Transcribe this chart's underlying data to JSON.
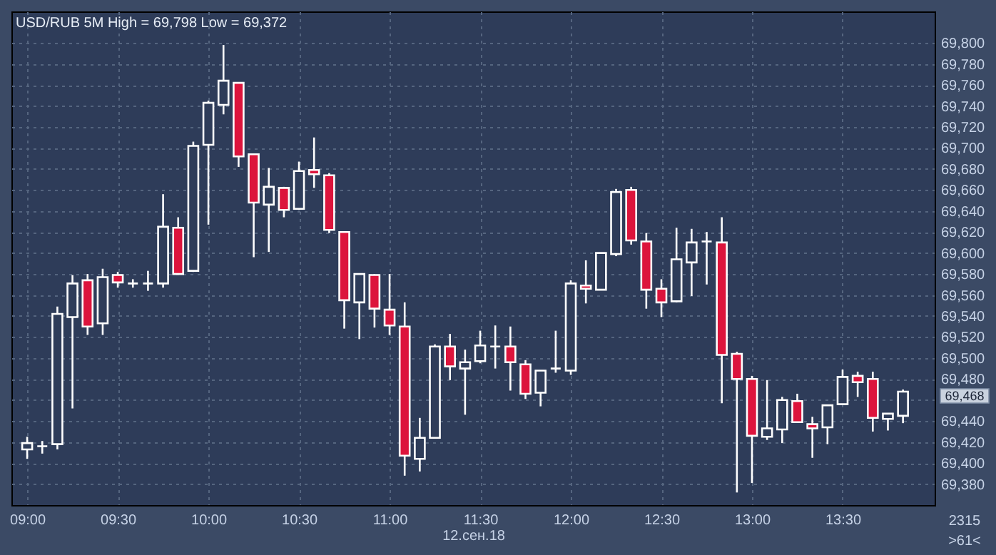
{
  "chart_data": {
    "type": "candlestick",
    "title": "USD/RUB 5M High = 69,798 Low = 69,372",
    "xlabel": "12.сен.18",
    "x": [
      9,
      9.0833,
      9.1667,
      9.25,
      9.3333,
      9.4167,
      9.5,
      9.5833,
      9.6667,
      9.75,
      9.8333,
      9.9167,
      10,
      10.0833,
      10.1667,
      10.25,
      10.3333,
      10.4167,
      10.5,
      10.5833,
      10.6667,
      10.75,
      10.8333,
      10.9167,
      11,
      11.0833,
      11.1667,
      11.25,
      11.3333,
      11.4167,
      11.5,
      11.5833,
      11.6667,
      11.75,
      11.8333,
      11.9167,
      12,
      12.0833,
      12.1667,
      12.25,
      12.3333,
      12.4167,
      12.5,
      12.5833,
      12.6667,
      12.75,
      12.8333,
      12.9167,
      13,
      13.0833,
      13.1667,
      13.25,
      13.3333,
      13.4167,
      13.5,
      13.5833,
      13.6667,
      13.75,
      13.8333
    ],
    "ohlc": [
      [
        69413,
        69425,
        69404,
        69419
      ],
      [
        69416,
        69421,
        69409,
        69416
      ],
      [
        69418,
        69549,
        69413,
        69542
      ],
      [
        69539,
        69579,
        69452,
        69571
      ],
      [
        69574,
        69580,
        69522,
        69530
      ],
      [
        69533,
        69585,
        69522,
        69577
      ],
      [
        69579,
        69582,
        69567,
        69572
      ],
      [
        69571,
        69575,
        69567,
        69571
      ],
      [
        69571,
        69583,
        69564,
        69571
      ],
      [
        69571,
        69656,
        69567,
        69625
      ],
      [
        69624,
        69634,
        69580,
        69580
      ],
      [
        69583,
        69706,
        69582,
        69702
      ],
      [
        69703,
        69745,
        69627,
        69743
      ],
      [
        69741,
        69798,
        69732,
        69764
      ],
      [
        69762,
        69762,
        69682,
        69692
      ],
      [
        69694,
        69694,
        69596,
        69648
      ],
      [
        69646,
        69681,
        69601,
        69663
      ],
      [
        69662,
        69663,
        69634,
        69641
      ],
      [
        69642,
        69687,
        69641,
        69678
      ],
      [
        69679,
        69710,
        69662,
        69675
      ],
      [
        69674,
        69676,
        69619,
        69622
      ],
      [
        69620,
        69620,
        69528,
        69555
      ],
      [
        69553,
        69580,
        69518,
        69580
      ],
      [
        69579,
        69580,
        69529,
        69547
      ],
      [
        69546,
        69580,
        69522,
        69531
      ],
      [
        69530,
        69553,
        69388,
        69407
      ],
      [
        69404,
        69443,
        69392,
        69424
      ],
      [
        69424,
        69513,
        69424,
        69511
      ],
      [
        69511,
        69523,
        69479,
        69492
      ],
      [
        69490,
        69508,
        69446,
        69496
      ],
      [
        69497,
        69526,
        69495,
        69512
      ],
      [
        69511,
        69531,
        69490,
        69511
      ],
      [
        69511,
        69530,
        69469,
        69496
      ],
      [
        69494,
        69498,
        69461,
        69466
      ],
      [
        69467,
        69488,
        69454,
        69488
      ],
      [
        69490,
        69526,
        69486,
        69490
      ],
      [
        69488,
        69574,
        69484,
        69571
      ],
      [
        69569,
        69593,
        69552,
        69566
      ],
      [
        69565,
        69600,
        69565,
        69600
      ],
      [
        69599,
        69661,
        69597,
        69658
      ],
      [
        69660,
        69663,
        69608,
        69612
      ],
      [
        69611,
        69619,
        69547,
        69565
      ],
      [
        69566,
        69575,
        69539,
        69553
      ],
      [
        69554,
        69624,
        69553,
        69594
      ],
      [
        69591,
        69623,
        69559,
        69610
      ],
      [
        69611,
        69620,
        69570,
        69611
      ],
      [
        69610,
        69634,
        69457,
        69503
      ],
      [
        69504,
        69506,
        69372,
        69480
      ],
      [
        69480,
        69483,
        69381,
        69426
      ],
      [
        69425,
        69479,
        69422,
        69433
      ],
      [
        69432,
        69463,
        69419,
        69460
      ],
      [
        69459,
        69466,
        69439,
        69439
      ],
      [
        69437,
        69444,
        69405,
        69433
      ],
      [
        69434,
        69455,
        69418,
        69455
      ],
      [
        69456,
        69489,
        69456,
        69482
      ],
      [
        69483,
        69487,
        69463,
        69477
      ],
      [
        69480,
        69487,
        69430,
        69443
      ],
      [
        69442,
        69447,
        69431,
        69447
      ],
      [
        69445,
        69470,
        69438,
        69468
      ]
    ],
    "colors": [
      "#2e3c59",
      "#ffffff",
      "#2e3c59",
      "#2e3c59",
      "#dc143c",
      "#2e3c59",
      "#dc143c",
      "#ffffff",
      "#ffffff",
      "#2e3c59",
      "#dc143c",
      "#2e3c59",
      "#2e3c59",
      "#2e3c59",
      "#dc143c",
      "#dc143c",
      "#2e3c59",
      "#dc143c",
      "#2e3c59",
      "#dc143c",
      "#dc143c",
      "#dc143c",
      "#2e3c59",
      "#dc143c",
      "#dc143c",
      "#dc143c",
      "#2e3c59",
      "#2e3c59",
      "#dc143c",
      "#2e3c59",
      "#2e3c59",
      "#ffffff",
      "#dc143c",
      "#dc143c",
      "#2e3c59",
      "#ffffff",
      "#2e3c59",
      "#dc143c",
      "#2e3c59",
      "#2e3c59",
      "#dc143c",
      "#dc143c",
      "#dc143c",
      "#2e3c59",
      "#2e3c59",
      "#ffffff",
      "#dc143c",
      "#dc143c",
      "#dc143c",
      "#2e3c59",
      "#2e3c59",
      "#dc143c",
      "#dc143c",
      "#2e3c59",
      "#2e3c59",
      "#dc143c",
      "#dc143c",
      "#2e3c59",
      "#2e3c59"
    ],
    "xlim": [
      8.913,
      14.008
    ],
    "xticks": [
      {
        "value": 9,
        "label": "09:00"
      },
      {
        "value": 9.5,
        "label": "09:30"
      },
      {
        "value": 10,
        "label": "10:00"
      },
      {
        "value": 10.5,
        "label": "10:30"
      },
      {
        "value": 11,
        "label": "11:00"
      },
      {
        "value": 11.5,
        "label": "11:30"
      },
      {
        "value": 12,
        "label": "12:00"
      },
      {
        "value": 12.5,
        "label": "12:30"
      },
      {
        "value": 13,
        "label": "13:00"
      },
      {
        "value": 13.5,
        "label": "13:30"
      }
    ],
    "ylim": [
      69360,
      69830
    ],
    "yticks": [
      {
        "value": 69380,
        "label": "69,380"
      },
      {
        "value": 69400,
        "label": "69,400"
      },
      {
        "value": 69420,
        "label": "69,420"
      },
      {
        "value": 69440,
        "label": "69,440"
      },
      {
        "value": 69460,
        "label": null
      },
      {
        "value": 69480,
        "label": "69,480"
      },
      {
        "value": 69500,
        "label": "69,500"
      },
      {
        "value": 69520,
        "label": "69,520"
      },
      {
        "value": 69540,
        "label": "69,540"
      },
      {
        "value": 69560,
        "label": "69,560"
      },
      {
        "value": 69580,
        "label": "69,580"
      },
      {
        "value": 69600,
        "label": "69,600"
      },
      {
        "value": 69620,
        "label": "69,620"
      },
      {
        "value": 69640,
        "label": "69,640"
      },
      {
        "value": 69660,
        "label": "69,660"
      },
      {
        "value": 69680,
        "label": "69,680"
      },
      {
        "value": 69700,
        "label": "69,700"
      },
      {
        "value": 69720,
        "label": "69,720"
      },
      {
        "value": 69740,
        "label": "69,740"
      },
      {
        "value": 69760,
        "label": "69,760"
      },
      {
        "value": 69780,
        "label": "69,780"
      },
      {
        "value": 69800,
        "label": "69,800"
      }
    ],
    "grid": true,
    "annotations": [
      "69,468",
      "2315",
      ">61<"
    ]
  }
}
